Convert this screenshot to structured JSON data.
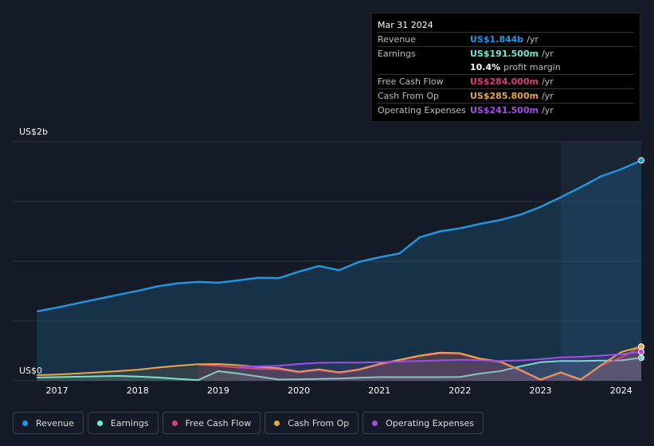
{
  "chart_data": {
    "type": "area",
    "x": [
      2016.75,
      2017.0,
      2017.25,
      2017.5,
      2017.75,
      2018.0,
      2018.25,
      2018.5,
      2018.75,
      2019.0,
      2019.25,
      2019.5,
      2019.75,
      2020.0,
      2020.25,
      2020.5,
      2020.75,
      2021.0,
      2021.25,
      2021.5,
      2021.75,
      2022.0,
      2022.25,
      2022.5,
      2022.75,
      2023.0,
      2023.25,
      2023.5,
      2023.75,
      2024.0,
      2024.25
    ],
    "xlim": [
      2016.45,
      2024.25
    ],
    "xticks": [
      2017,
      2018,
      2019,
      2020,
      2021,
      2022,
      2023,
      2024
    ],
    "ylim": [
      0,
      2000
    ],
    "yticks": [
      {
        "value": 0,
        "label": "US$0"
      },
      {
        "value": 500,
        "label": null
      },
      {
        "value": 1000,
        "label": null
      },
      {
        "value": 1500,
        "label": null
      },
      {
        "value": 2000,
        "label": "US$2b"
      }
    ],
    "grid": true,
    "series": [
      {
        "name": "Revenue",
        "color": "#2394df",
        "values": [
          580,
          612,
          648,
          683,
          718,
          752,
          790,
          815,
          827,
          820,
          840,
          862,
          858,
          913,
          960,
          925,
          995,
          1033,
          1065,
          1200,
          1250,
          1275,
          1313,
          1345,
          1390,
          1455,
          1535,
          1620,
          1710,
          1770,
          1844
        ]
      },
      {
        "name": "Earnings",
        "color": "#74e8d6",
        "values": [
          27,
          30,
          33,
          37,
          40,
          35,
          27,
          15,
          5,
          80,
          60,
          35,
          10,
          12,
          15,
          18,
          25,
          30,
          30,
          30,
          30,
          32,
          60,
          80,
          120,
          155,
          165,
          165,
          168,
          170,
          191.5
        ]
      },
      {
        "name": "Free Cash Flow",
        "color": "#d63f7b",
        "values": [
          null,
          null,
          null,
          null,
          null,
          null,
          null,
          null,
          135,
          125,
          110,
          100,
          95,
          70,
          90,
          65,
          90,
          135,
          170,
          205,
          230,
          225,
          180,
          155,
          85,
          5,
          65,
          5,
          125,
          195,
          284
        ]
      },
      {
        "name": "Cash From Op",
        "color": "#e8a64f",
        "values": [
          47,
          52,
          60,
          70,
          80,
          92,
          110,
          125,
          138,
          140,
          130,
          115,
          105,
          75,
          95,
          70,
          95,
          140,
          175,
          210,
          235,
          230,
          185,
          160,
          90,
          10,
          70,
          10,
          130,
          240,
          285.8
        ]
      },
      {
        "name": "Operating Expenses",
        "color": "#a24fe8",
        "values": [
          null,
          null,
          null,
          null,
          null,
          null,
          null,
          null,
          null,
          null,
          120,
          120,
          125,
          140,
          150,
          152,
          152,
          155,
          160,
          165,
          170,
          175,
          172,
          165,
          170,
          180,
          195,
          200,
          210,
          222,
          241.5
        ]
      }
    ]
  },
  "tooltip": {
    "date": "Mar 31 2024",
    "rows": [
      {
        "label": "Revenue",
        "value": "US$1.844b",
        "unit": "/yr"
      },
      {
        "label": "Earnings",
        "value": "US$191.500m",
        "unit": "/yr"
      },
      {
        "label": "Free Cash Flow",
        "value": "US$284.000m",
        "unit": "/yr"
      },
      {
        "label": "Cash From Op",
        "value": "US$285.800m",
        "unit": "/yr"
      },
      {
        "label": "Operating Expenses",
        "value": "US$241.500m",
        "unit": "/yr"
      }
    ],
    "margin": {
      "value": "10.4%",
      "text": "profit margin"
    }
  }
}
